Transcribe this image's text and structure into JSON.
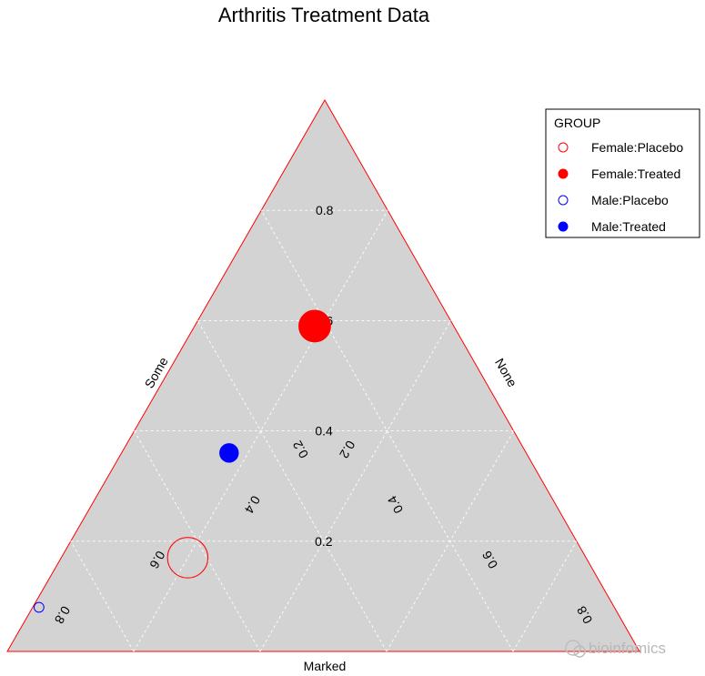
{
  "chart_data": {
    "type": "scatter",
    "subtype": "ternary",
    "title": "Arthritis Treatment Data",
    "axes": {
      "top": "",
      "left": "Some",
      "right": "None",
      "bottom": "Marked"
    },
    "axis_colors": {
      "frame": "#ff0000",
      "background": "#d3d3d3",
      "grid": "#ffffff"
    },
    "ticks": {
      "center": [
        "0.2",
        "0.4",
        "0.6",
        "0.8"
      ],
      "left": [
        "0.2",
        "0.4",
        "0.6",
        "0.8"
      ],
      "right": [
        "0.2",
        "0.4",
        "0.6",
        "0.8"
      ]
    },
    "legend": {
      "title": "GROUP",
      "placement": "top-right",
      "entries": [
        "Female:Placebo",
        "Female:Treated",
        "Male:Placebo",
        "Male:Treated"
      ]
    },
    "series": [
      {
        "name": "Female:Placebo",
        "color": "#ff0000",
        "filled": false,
        "size": 8,
        "a": 0.17,
        "b": 0.63,
        "c": 0.2
      },
      {
        "name": "Female:Treated",
        "color": "#ff0000",
        "filled": true,
        "size": 6,
        "a": 0.59,
        "b": 0.22,
        "c": 0.19
      },
      {
        "name": "Male:Placebo",
        "color": "#0000ff",
        "filled": false,
        "size": 1,
        "a": 0.08,
        "b": 0.91,
        "c": 0.01
      },
      {
        "name": "Male:Treated",
        "color": "#0000ff",
        "filled": true,
        "size": 3,
        "a": 0.36,
        "b": 0.47,
        "c": 0.17
      }
    ]
  },
  "watermark": {
    "text": "bioinfomics"
  }
}
